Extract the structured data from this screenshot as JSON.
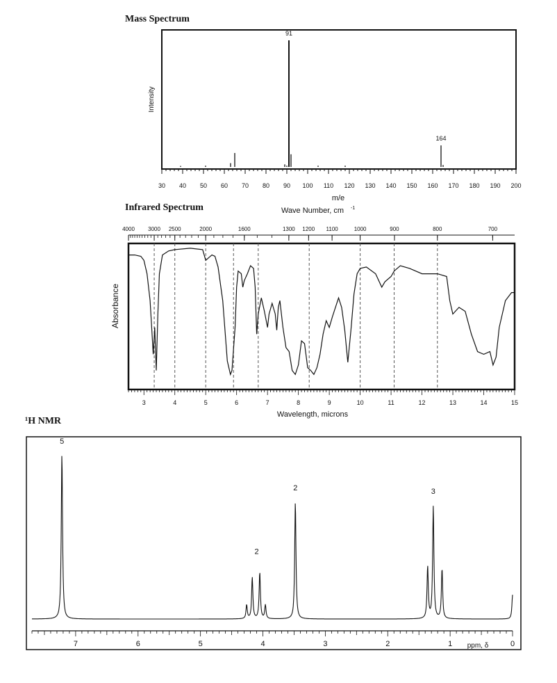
{
  "mass_spectrum": {
    "title": "Mass Spectrum",
    "ylabel": "Intensity",
    "xlabel": "m/e"
  },
  "infrared_spectrum": {
    "title": "Infrared Spectrum",
    "top_axis_label": "Wave Number, cm",
    "top_axis_superscript": "-1",
    "ylabel": "Absorbance",
    "xlabel": "Wavelength, microns"
  },
  "nmr": {
    "title": "¹H NMR",
    "xlabel": "ppm, δ"
  },
  "chart_data": [
    {
      "id": "mass",
      "type": "bar",
      "title": "Mass Spectrum",
      "xlabel": "m/e",
      "ylabel": "Intensity",
      "xlim": [
        30,
        200
      ],
      "xticks": [
        30,
        40,
        50,
        60,
        70,
        80,
        90,
        100,
        110,
        120,
        130,
        140,
        150,
        160,
        170,
        180,
        190,
        200
      ],
      "ylim": [
        0,
        100
      ],
      "peaks": [
        {
          "mz": 39,
          "intensity": 0.8
        },
        {
          "mz": 51,
          "intensity": 1
        },
        {
          "mz": 63,
          "intensity": 3
        },
        {
          "mz": 65,
          "intensity": 11
        },
        {
          "mz": 89,
          "intensity": 2
        },
        {
          "mz": 90,
          "intensity": 1
        },
        {
          "mz": 91,
          "intensity": 100
        },
        {
          "mz": 92,
          "intensity": 10
        },
        {
          "mz": 105,
          "intensity": 1
        },
        {
          "mz": 118,
          "intensity": 1
        },
        {
          "mz": 164,
          "intensity": 17
        },
        {
          "mz": 165,
          "intensity": 1.5
        }
      ],
      "peak_labels": [
        {
          "mz": 91,
          "label": "91"
        },
        {
          "mz": 164,
          "label": "164"
        }
      ]
    },
    {
      "id": "ir",
      "type": "line",
      "title": "Infrared Spectrum",
      "xlabel": "Wavelength, microns",
      "ylabel": "Absorbance",
      "top_axis_label": "Wave Number, cm -1",
      "xlim": [
        2.5,
        15
      ],
      "xticks": [
        3,
        4,
        5,
        6,
        7,
        8,
        9,
        10,
        11,
        12,
        13,
        14,
        15
      ],
      "top_ticks": [
        {
          "label": "4000",
          "micron": 2.5
        },
        {
          "label": "3000",
          "micron": 3.333
        },
        {
          "label": "2500",
          "micron": 4.0
        },
        {
          "label": "2000",
          "micron": 5.0
        },
        {
          "label": "1600",
          "micron": 6.25
        },
        {
          "label": "1300",
          "micron": 7.69
        },
        {
          "label": "1200",
          "micron": 8.33
        },
        {
          "label": "1100",
          "micron": 9.09
        },
        {
          "label": "1000",
          "micron": 10.0
        },
        {
          "label": "900",
          "micron": 11.11
        },
        {
          "label": "800",
          "micron": 12.5
        },
        {
          "label": "700",
          "micron": 14.29
        }
      ],
      "dashed_lines": [
        3.333,
        4.0,
        5.0,
        5.9,
        6.7,
        8.35,
        10.0,
        11.1,
        12.5
      ],
      "ylim": [
        0,
        1
      ],
      "points": [
        [
          2.5,
          0.06
        ],
        [
          2.7,
          0.06
        ],
        [
          2.9,
          0.07
        ],
        [
          3.0,
          0.1
        ],
        [
          3.1,
          0.2
        ],
        [
          3.2,
          0.4
        ],
        [
          3.25,
          0.6
        ],
        [
          3.3,
          0.8
        ],
        [
          3.35,
          0.6
        ],
        [
          3.4,
          0.92
        ],
        [
          3.45,
          0.5
        ],
        [
          3.5,
          0.2
        ],
        [
          3.6,
          0.06
        ],
        [
          3.8,
          0.03
        ],
        [
          4.0,
          0.02
        ],
        [
          4.5,
          0.01
        ],
        [
          4.9,
          0.02
        ],
        [
          5.0,
          0.1
        ],
        [
          5.1,
          0.08
        ],
        [
          5.2,
          0.06
        ],
        [
          5.3,
          0.07
        ],
        [
          5.4,
          0.15
        ],
        [
          5.55,
          0.4
        ],
        [
          5.7,
          0.85
        ],
        [
          5.8,
          0.95
        ],
        [
          5.85,
          0.92
        ],
        [
          5.95,
          0.6
        ],
        [
          6.0,
          0.3
        ],
        [
          6.05,
          0.18
        ],
        [
          6.15,
          0.2
        ],
        [
          6.2,
          0.3
        ],
        [
          6.25,
          0.25
        ],
        [
          6.35,
          0.2
        ],
        [
          6.45,
          0.14
        ],
        [
          6.55,
          0.16
        ],
        [
          6.6,
          0.3
        ],
        [
          6.65,
          0.65
        ],
        [
          6.7,
          0.5
        ],
        [
          6.8,
          0.38
        ],
        [
          6.9,
          0.48
        ],
        [
          7.0,
          0.6
        ],
        [
          7.05,
          0.5
        ],
        [
          7.15,
          0.42
        ],
        [
          7.25,
          0.5
        ],
        [
          7.3,
          0.62
        ],
        [
          7.35,
          0.45
        ],
        [
          7.4,
          0.4
        ],
        [
          7.5,
          0.6
        ],
        [
          7.6,
          0.75
        ],
        [
          7.7,
          0.78
        ],
        [
          7.8,
          0.92
        ],
        [
          7.9,
          0.95
        ],
        [
          8.0,
          0.88
        ],
        [
          8.1,
          0.7
        ],
        [
          8.2,
          0.72
        ],
        [
          8.3,
          0.9
        ],
        [
          8.4,
          0.92
        ],
        [
          8.5,
          0.95
        ],
        [
          8.6,
          0.9
        ],
        [
          8.7,
          0.8
        ],
        [
          8.8,
          0.65
        ],
        [
          8.9,
          0.55
        ],
        [
          9.0,
          0.6
        ],
        [
          9.1,
          0.52
        ],
        [
          9.2,
          0.45
        ],
        [
          9.3,
          0.38
        ],
        [
          9.4,
          0.45
        ],
        [
          9.5,
          0.62
        ],
        [
          9.6,
          0.86
        ],
        [
          9.7,
          0.62
        ],
        [
          9.8,
          0.35
        ],
        [
          9.9,
          0.2
        ],
        [
          10.0,
          0.16
        ],
        [
          10.2,
          0.15
        ],
        [
          10.5,
          0.2
        ],
        [
          10.7,
          0.3
        ],
        [
          10.8,
          0.26
        ],
        [
          11.0,
          0.22
        ],
        [
          11.1,
          0.18
        ],
        [
          11.3,
          0.14
        ],
        [
          11.6,
          0.16
        ],
        [
          12.0,
          0.2
        ],
        [
          12.5,
          0.2
        ],
        [
          12.8,
          0.22
        ],
        [
          12.9,
          0.4
        ],
        [
          13.0,
          0.5
        ],
        [
          13.2,
          0.45
        ],
        [
          13.4,
          0.48
        ],
        [
          13.6,
          0.65
        ],
        [
          13.8,
          0.78
        ],
        [
          14.0,
          0.8
        ],
        [
          14.2,
          0.78
        ],
        [
          14.3,
          0.88
        ],
        [
          14.4,
          0.82
        ],
        [
          14.5,
          0.6
        ],
        [
          14.7,
          0.4
        ],
        [
          14.9,
          0.34
        ],
        [
          15.0,
          0.34
        ]
      ]
    },
    {
      "id": "nmr",
      "type": "line",
      "title": "¹H NMR",
      "xlabel": "ppm, δ",
      "xlim": [
        7.7,
        0
      ],
      "xticks": [
        7,
        6,
        5,
        4,
        3,
        2,
        1,
        0
      ],
      "ylim": [
        0,
        100
      ],
      "peaks": [
        {
          "ppm": 7.22,
          "height": 96
        },
        {
          "ppm": 4.26,
          "height": 8
        },
        {
          "ppm": 4.17,
          "height": 24
        },
        {
          "ppm": 4.05,
          "height": 27
        },
        {
          "ppm": 3.96,
          "height": 8
        },
        {
          "ppm": 3.48,
          "height": 68
        },
        {
          "ppm": 1.36,
          "height": 30
        },
        {
          "ppm": 1.27,
          "height": 65
        },
        {
          "ppm": 1.13,
          "height": 29
        },
        {
          "ppm": 0.0,
          "height": 14
        }
      ],
      "integrations": [
        {
          "ppm": 7.22,
          "label": "5",
          "level": 100
        },
        {
          "ppm": 4.1,
          "label": "2",
          "level": 36
        },
        {
          "ppm": 3.48,
          "label": "2",
          "level": 73
        },
        {
          "ppm": 1.27,
          "label": "3",
          "level": 71
        }
      ]
    }
  ]
}
